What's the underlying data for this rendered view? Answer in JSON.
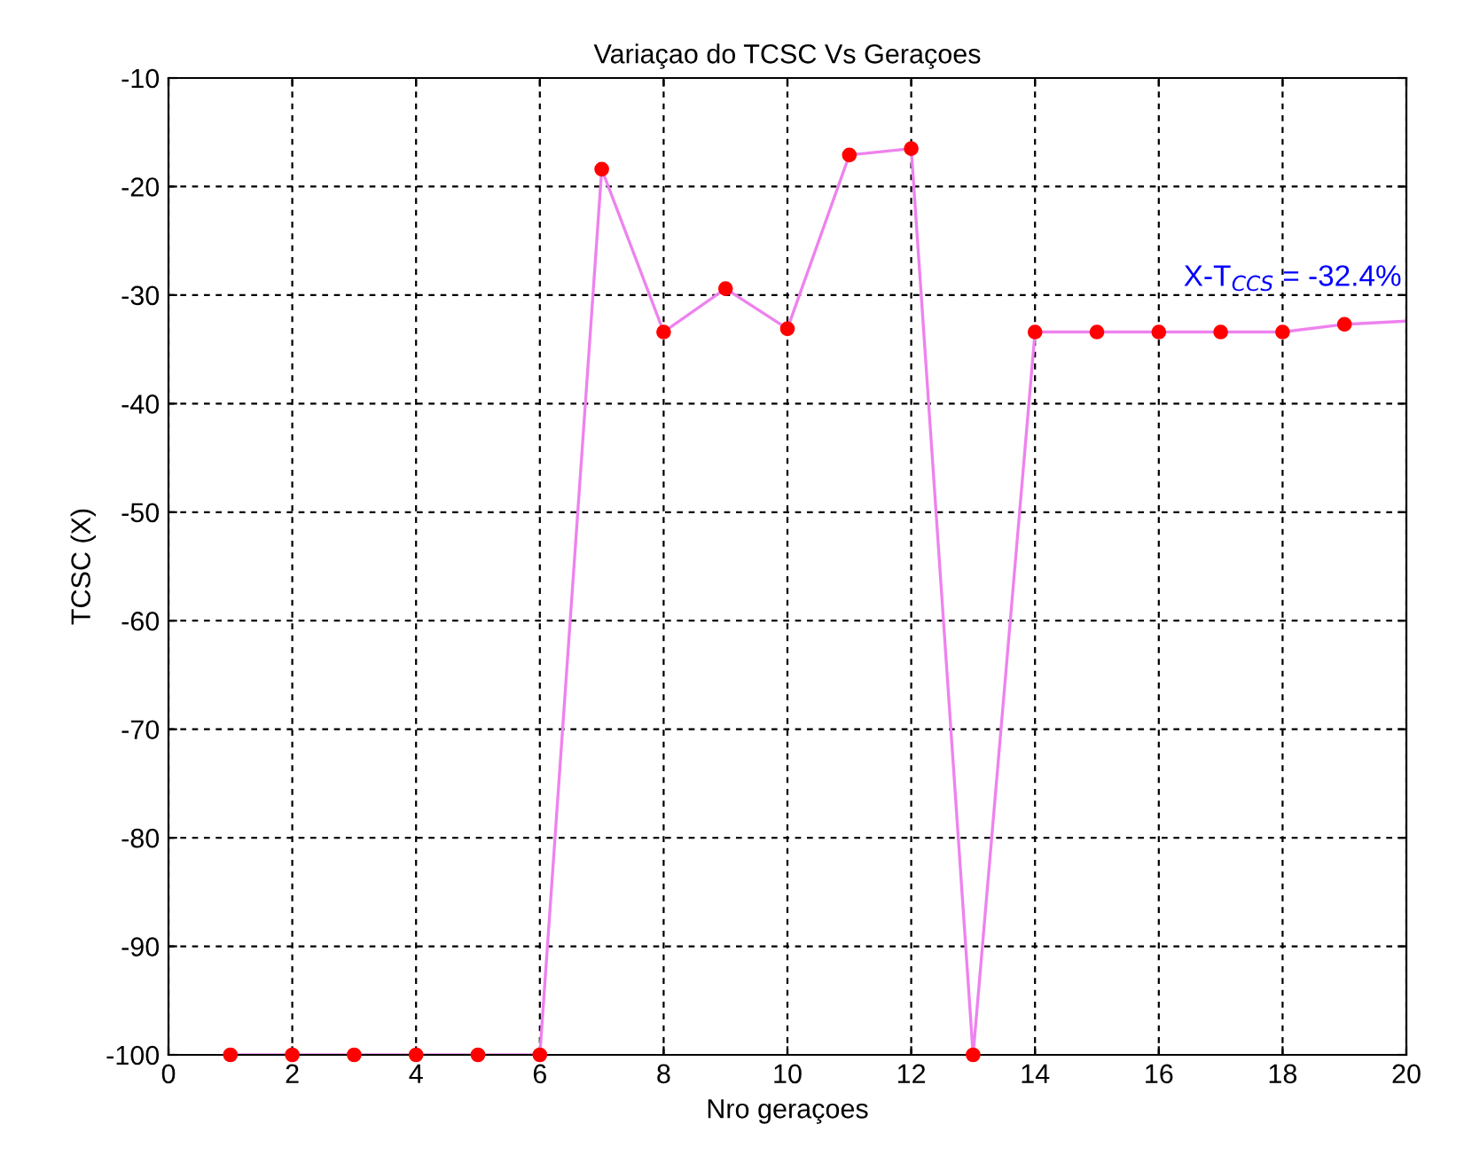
{
  "chart_data": {
    "type": "line",
    "title": "Variaçao do TCSC Vs Geraçoes",
    "xlabel": "Nro geraçoes",
    "ylabel": "TCSC (X)",
    "x": [
      1,
      2,
      3,
      4,
      5,
      6,
      7,
      8,
      9,
      10,
      11,
      12,
      13,
      14,
      15,
      16,
      17,
      18,
      19,
      20
    ],
    "series": [
      {
        "color": "#ee82ee",
        "values": [
          -100,
          -100,
          -100,
          -100,
          -100,
          -100,
          -18.4,
          -33.4,
          -29.4,
          -33.1,
          -17.1,
          -16.5,
          -100,
          -33.4,
          -33.4,
          -33.4,
          -33.4,
          -33.4,
          -32.7,
          -32.4
        ],
        "colors": [
          "#ff0000",
          "#ff0000",
          "#ff0000",
          "#ff0000",
          "#ff0000",
          "#ff0000",
          "#ff0000",
          "#ff0000",
          "#ff0000",
          "#ff0000",
          "#ff0000",
          "#ff0000",
          "#ff0000",
          "#ff0000",
          "#ff0000",
          "#ff0000",
          "#ff0000",
          "#ff0000",
          "#ff0000",
          null
        ]
      }
    ],
    "marker": "circle",
    "line_style": "solid",
    "xlim": [
      0,
      20
    ],
    "xticks": [
      0,
      2,
      4,
      6,
      8,
      10,
      12,
      14,
      16,
      18,
      20
    ],
    "ylim": [
      -100,
      -10
    ],
    "yticks": [
      -100,
      -90,
      -80,
      -70,
      -60,
      -50,
      -40,
      -30,
      -20,
      -10
    ],
    "grid": true,
    "annotations": [
      "X-T$_{CCS}$ = -32.4%"
    ]
  }
}
